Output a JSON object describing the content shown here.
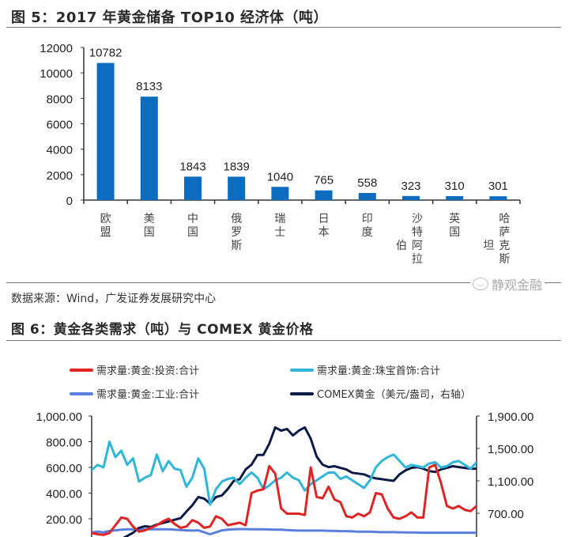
{
  "figure5": {
    "title": "图 5：2017 年黄金储备 TOP10 经济体（吨）",
    "source": "数据来源：Wind，广发证券发展研究中心"
  },
  "figure6": {
    "title": "图 6：黄金各类需求（吨）与 COMEX 黄金价格"
  },
  "watermark": {
    "text": "静观金融",
    "icon": "wechat-icon"
  },
  "colors": {
    "bar": "#0b6cc0",
    "investment": "#e02424",
    "jewelry": "#2fb6d8",
    "industrial": "#5a7fdc",
    "comex": "#0c1a48",
    "axis": "#333333"
  },
  "chart_data": [
    {
      "type": "bar",
      "title": "2017 年黄金储备 TOP10 经济体（吨）",
      "xlabel": "",
      "ylabel": "吨",
      "categories": [
        "欧盟",
        "美国",
        "中国",
        "俄罗斯",
        "瑞士",
        "日本",
        "印度",
        "沙特阿拉伯",
        "英国",
        "哈萨克斯坦"
      ],
      "category_label_lines": [
        [
          "欧",
          "盟"
        ],
        [
          "美",
          "国"
        ],
        [
          "中",
          "国"
        ],
        [
          "俄",
          "罗",
          "斯"
        ],
        [
          "瑞",
          "士"
        ],
        [
          "日",
          "本"
        ],
        [
          "印",
          "度"
        ],
        [
          "伯",
          "沙特阿拉"
        ],
        [
          "英",
          "国"
        ],
        [
          "坦",
          "哈萨克斯"
        ]
      ],
      "values": [
        10782,
        8133,
        1843,
        1839,
        1040,
        765,
        558,
        323,
        310,
        301
      ],
      "data_labels": [
        "10782",
        "8133",
        "1843",
        "1839",
        "1040",
        "765",
        "558",
        "323",
        "310",
        "301"
      ],
      "yticks": [
        "0",
        "2000",
        "4000",
        "6000",
        "8000",
        "10000",
        "12000"
      ],
      "ylim": [
        0,
        12000
      ],
      "grid": false,
      "legend": null
    },
    {
      "type": "line",
      "title": "黄金各类需求（吨）与 COMEX 黄金价格",
      "xlabel": "",
      "ylabel": "吨",
      "y2label": "美元/盎司",
      "legend_position": "top",
      "yticks_left": [
        "200.00",
        "400.00",
        "600.00",
        "800.00",
        "1,000.00"
      ],
      "yticks_right": [
        "700.00",
        "1,100.00",
        "1,500.00",
        "1,900.00"
      ],
      "ylim_left": [
        0,
        1000
      ],
      "ylim_right": [
        300,
        1900
      ],
      "grid": false,
      "series": [
        {
          "name": "需求量:黄金:投资:合计",
          "axis": "left",
          "color": "#e02424",
          "values": [
            90,
            80,
            75,
            90,
            150,
            210,
            200,
            140,
            100,
            110,
            130,
            150,
            180,
            200,
            160,
            130,
            140,
            190,
            170,
            130,
            140,
            220,
            200,
            150,
            160,
            170,
            150,
            400,
            420,
            430,
            610,
            550,
            280,
            240,
            240,
            240,
            230,
            600,
            370,
            360,
            450,
            350,
            330,
            220,
            210,
            240,
            220,
            250,
            400,
            390,
            280,
            210,
            200,
            220,
            250,
            210,
            210,
            600,
            620,
            480,
            300,
            280,
            300,
            270,
            260,
            300
          ]
        },
        {
          "name": "需求量:黄金:珠宝首饰:合计",
          "axis": "left",
          "color": "#2fb6d8",
          "values": [
            580,
            620,
            600,
            800,
            680,
            730,
            620,
            670,
            490,
            520,
            540,
            700,
            570,
            650,
            590,
            580,
            450,
            520,
            670,
            590,
            310,
            430,
            490,
            510,
            520,
            470,
            520,
            560,
            520,
            430,
            460,
            500,
            520,
            560,
            520,
            500,
            420,
            470,
            500,
            530,
            560,
            560,
            510,
            530,
            500,
            470,
            440,
            500,
            600,
            650,
            680,
            700,
            650,
            600,
            620,
            610,
            600,
            630,
            640,
            600,
            610,
            640,
            650,
            620,
            590,
            640
          ]
        },
        {
          "name": "需求量:黄金:工业:合计",
          "axis": "left",
          "color": "#5a7fdc",
          "values": [
            95,
            100,
            95,
            105,
            110,
            115,
            118,
            118,
            118,
            118,
            118,
            118,
            118,
            118,
            115,
            112,
            110,
            108,
            110,
            95,
            80,
            95,
            110,
            115,
            118,
            120,
            120,
            118,
            118,
            118,
            117,
            115,
            115,
            112,
            110,
            108,
            108,
            108,
            108,
            108,
            106,
            106,
            104,
            104,
            102,
            100,
            100,
            100,
            98,
            96,
            96,
            96,
            95,
            94,
            94,
            93,
            92,
            92,
            92,
            92,
            92,
            92,
            92,
            92,
            92,
            92
          ]
        },
        {
          "name": "COMEX黄金（美元/盎司，右轴）",
          "axis": "right",
          "color": "#0c1a48",
          "values": [
            330,
            320,
            330,
            340,
            350,
            380,
            420,
            460,
            520,
            540,
            530,
            560,
            580,
            600,
            620,
            640,
            720,
            800,
            900,
            880,
            820,
            900,
            920,
            1000,
            1100,
            1120,
            1240,
            1300,
            1420,
            1420,
            1560,
            1760,
            1720,
            1740,
            1660,
            1720,
            1760,
            1620,
            1400,
            1300,
            1270,
            1280,
            1260,
            1240,
            1200,
            1190,
            1180,
            1150,
            1130,
            1120,
            1110,
            1100,
            1180,
            1230,
            1260,
            1270,
            1250,
            1220,
            1210,
            1240,
            1260,
            1280,
            1270,
            1260,
            1250,
            1250
          ]
        }
      ]
    }
  ]
}
